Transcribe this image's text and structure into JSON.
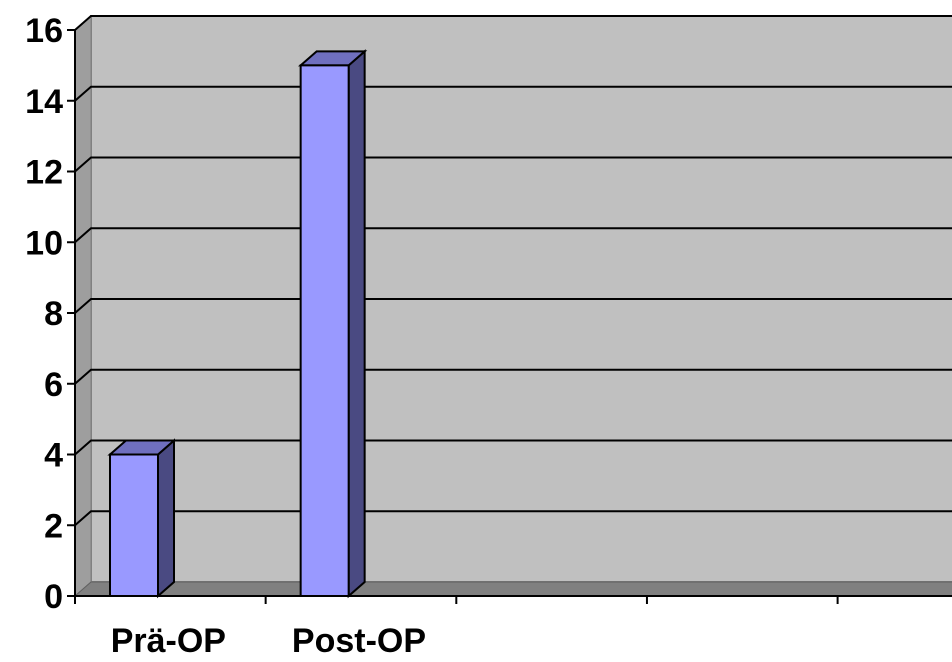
{
  "chart_data": {
    "type": "bar",
    "title": "",
    "xlabel": "",
    "ylabel": "",
    "categories": [
      "Prä-OP",
      "Post-OP",
      "",
      "",
      ""
    ],
    "values": [
      4,
      15,
      null,
      null,
      null
    ],
    "ylim": [
      0,
      16
    ],
    "yticks": [
      0,
      2,
      4,
      6,
      8,
      10,
      12,
      14,
      16
    ],
    "ytick_labels": [
      "0",
      "2",
      "4",
      "6",
      "8",
      "10",
      "12",
      "14",
      "16"
    ],
    "grid": true,
    "legend": false,
    "style": "3d-column",
    "colors": {
      "bar_front": "#9999ff",
      "bar_side": "#4a4a82",
      "bar_top": "#6f6fbf",
      "plot_wall": "#c0c0c0",
      "floor": "#808080",
      "gridline": "#000000"
    }
  }
}
